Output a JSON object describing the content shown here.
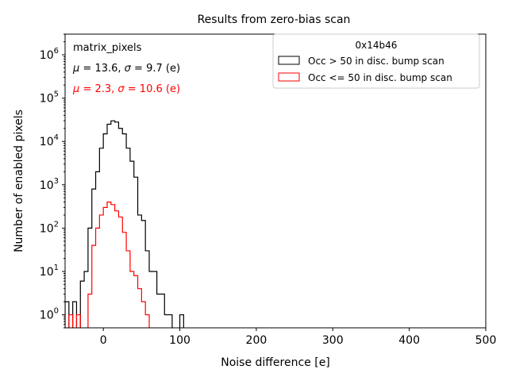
{
  "chart_data": {
    "type": "histogram-step",
    "title": "Results from zero-bias scan",
    "xlabel": "Noise difference [e]",
    "ylabel": "Number of enabled pixels",
    "xlim": [
      -50,
      500
    ],
    "ylim": [
      0.5,
      3000000
    ],
    "yscale": "log",
    "xticks": [
      0,
      100,
      200,
      300,
      400,
      500
    ],
    "yticks": [
      1,
      10,
      100,
      1000,
      10000,
      100000,
      1000000
    ],
    "ytick_labels": [
      "10^0",
      "10^1",
      "10^2",
      "10^3",
      "10^4",
      "10^5",
      "10^6"
    ],
    "bin_width": 5,
    "grid": false,
    "legend": {
      "title": "0x14b46",
      "placement": "top-right"
    },
    "annotations": [
      {
        "text": "matrix_pixels",
        "color": "#000000"
      },
      {
        "text": "μ = 13.6, σ = 9.7 (e)",
        "color": "#000000"
      },
      {
        "text": "μ = 2.3, σ = 10.6 (e)",
        "color": "#ff0000"
      }
    ],
    "series": [
      {
        "name": "Occ > 50 in disc. bump scan",
        "color": "#000000",
        "bins_start": [
          -50,
          -45,
          -40,
          -35,
          -30,
          -25,
          -20,
          -15,
          -10,
          -5,
          0,
          5,
          10,
          15,
          20,
          25,
          30,
          35,
          40,
          45,
          50,
          55,
          60,
          65,
          70,
          75,
          80,
          85,
          90,
          95,
          100,
          105
        ],
        "counts": [
          2,
          0,
          2,
          0,
          6,
          10,
          100,
          800,
          2000,
          7000,
          15000,
          25000,
          30000,
          28000,
          20000,
          15000,
          7000,
          3500,
          1500,
          200,
          150,
          30,
          10,
          10,
          3,
          3,
          1,
          1,
          0,
          0,
          1,
          0
        ]
      },
      {
        "name": "Occ <= 50 in disc. bump scan",
        "color": "#ff0000",
        "bins_start": [
          -50,
          -45,
          -40,
          -35,
          -30,
          -25,
          -20,
          -15,
          -10,
          -5,
          0,
          5,
          10,
          15,
          20,
          25,
          30,
          35,
          40,
          45,
          50,
          55,
          60
        ],
        "counts": [
          0,
          1,
          0,
          1,
          0,
          0,
          3,
          40,
          100,
          200,
          300,
          400,
          350,
          250,
          180,
          80,
          30,
          10,
          8,
          4,
          2,
          1,
          0
        ]
      }
    ]
  }
}
